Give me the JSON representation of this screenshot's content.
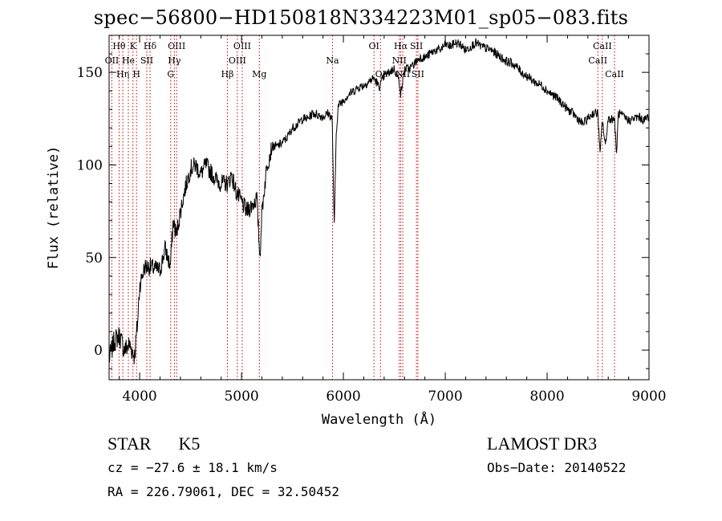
{
  "title": "spec−56800−HD150818N334223M01_sp05−083.fits",
  "info": {
    "object_class": "STAR",
    "subclass": "K5",
    "redshift": "cz = −27.6 ± 18.1 km/s",
    "coords": "RA = 226.79061, DEC =  32.50452",
    "survey": "LAMOST DR3",
    "obs_date": "Obs−Date: 20140522"
  },
  "chart_data": {
    "type": "line",
    "xlabel": "Wavelength (Å)",
    "ylabel": "Flux (relative)",
    "xlim": [
      3700,
      9000
    ],
    "ylim": [
      -16,
      170
    ],
    "xticks": [
      4000,
      5000,
      6000,
      7000,
      8000,
      9000
    ],
    "yticks": [
      0,
      50,
      100,
      150
    ],
    "line_color": "#000000",
    "marker_color": "#cc0000",
    "grid": false,
    "series": [
      {
        "x": [
          3700,
          3750,
          3800,
          3850,
          3900,
          3950,
          3980,
          4000,
          4050,
          4100,
          4150,
          4200,
          4250,
          4300,
          4330,
          4360,
          4400,
          4450,
          4500,
          4550,
          4600,
          4650,
          4700,
          4750,
          4800,
          4850,
          4870,
          4900,
          4950,
          5000,
          5050,
          5100,
          5150,
          5180,
          5200,
          5250,
          5300,
          5350,
          5400,
          5450,
          5500,
          5550,
          5600,
          5650,
          5700,
          5750,
          5800,
          5850,
          5890,
          5910,
          5930,
          5950,
          6000,
          6050,
          6100,
          6150,
          6200,
          6250,
          6300,
          6350,
          6400,
          6450,
          6500,
          6550,
          6563,
          6600,
          6650,
          6700,
          6750,
          6800,
          6850,
          6900,
          6950,
          7000,
          7050,
          7100,
          7150,
          7200,
          7250,
          7300,
          7350,
          7400,
          7450,
          7500,
          7550,
          7600,
          7650,
          7700,
          7750,
          7800,
          7850,
          7900,
          7950,
          8000,
          8050,
          8100,
          8150,
          8200,
          8250,
          8300,
          8350,
          8400,
          8450,
          8498,
          8520,
          8542,
          8570,
          8600,
          8662,
          8680,
          8700,
          8750,
          8800,
          8850,
          8900,
          8950,
          8990
        ],
        "y": [
          -5,
          5,
          8,
          0,
          3,
          -3,
          15,
          35,
          45,
          45,
          44,
          43,
          55,
          45,
          70,
          62,
          75,
          88,
          98,
          100,
          95,
          100,
          96,
          92,
          90,
          90,
          90,
          95,
          85,
          80,
          75,
          78,
          82,
          50,
          75,
          100,
          110,
          110,
          112,
          115,
          120,
          122,
          125,
          125,
          128,
          127,
          126,
          128,
          125,
          65,
          118,
          132,
          135,
          138,
          140,
          142,
          143,
          145,
          147,
          142,
          148,
          150,
          152,
          145,
          138,
          152,
          152,
          155,
          158,
          158,
          160,
          162,
          162,
          165,
          164,
          166,
          165,
          162,
          164,
          166,
          164,
          163,
          162,
          160,
          158,
          156,
          155,
          153,
          150,
          148,
          146,
          144,
          143,
          140,
          138,
          136,
          133,
          130,
          128,
          125,
          122,
          125,
          128,
          128,
          105,
          125,
          110,
          125,
          125,
          105,
          128,
          126,
          124,
          125,
          126,
          124,
          126
        ]
      }
    ],
    "line_markers": [
      {
        "label": "Hθ",
        "x": 3798,
        "row": 0
      },
      {
        "label": "OII",
        "x": 3727,
        "row": 1
      },
      {
        "label": "Hη",
        "x": 3835,
        "row": 2
      },
      {
        "label": "He",
        "x": 3889,
        "row": 1
      },
      {
        "label": "K",
        "x": 3934,
        "row": 0
      },
      {
        "label": "H",
        "x": 3969,
        "row": 2
      },
      {
        "label": "SII",
        "x": 4070,
        "row": 1
      },
      {
        "label": "Hδ",
        "x": 4102,
        "row": 0
      },
      {
        "label": "OIII",
        "x": 4363,
        "row": 0
      },
      {
        "label": "Hγ",
        "x": 4341,
        "row": 1
      },
      {
        "label": "G",
        "x": 4305,
        "row": 2
      },
      {
        "label": "Hβ",
        "x": 4861,
        "row": 2
      },
      {
        "label": "OIII",
        "x": 5007,
        "row": 0
      },
      {
        "label": "OIII",
        "x": 4959,
        "row": 1
      },
      {
        "label": "Mg",
        "x": 5175,
        "row": 2
      },
      {
        "label": "Na",
        "x": 5893,
        "row": 1
      },
      {
        "label": "OI",
        "x": 6300,
        "row": 0
      },
      {
        "label": "OI",
        "x": 6364,
        "row": 2
      },
      {
        "label": "Hα",
        "x": 6563,
        "row": 0
      },
      {
        "label": "NII",
        "x": 6548,
        "row": 1
      },
      {
        "label": "NII",
        "x": 6583,
        "row": 2
      },
      {
        "label": "SII",
        "x": 6717,
        "row": 0
      },
      {
        "label": "SII",
        "x": 6731,
        "row": 2
      },
      {
        "label": "CaII",
        "x": 8498,
        "row": 1
      },
      {
        "label": "CaII",
        "x": 8542,
        "row": 0
      },
      {
        "label": "CaII",
        "x": 8662,
        "row": 2
      }
    ]
  }
}
